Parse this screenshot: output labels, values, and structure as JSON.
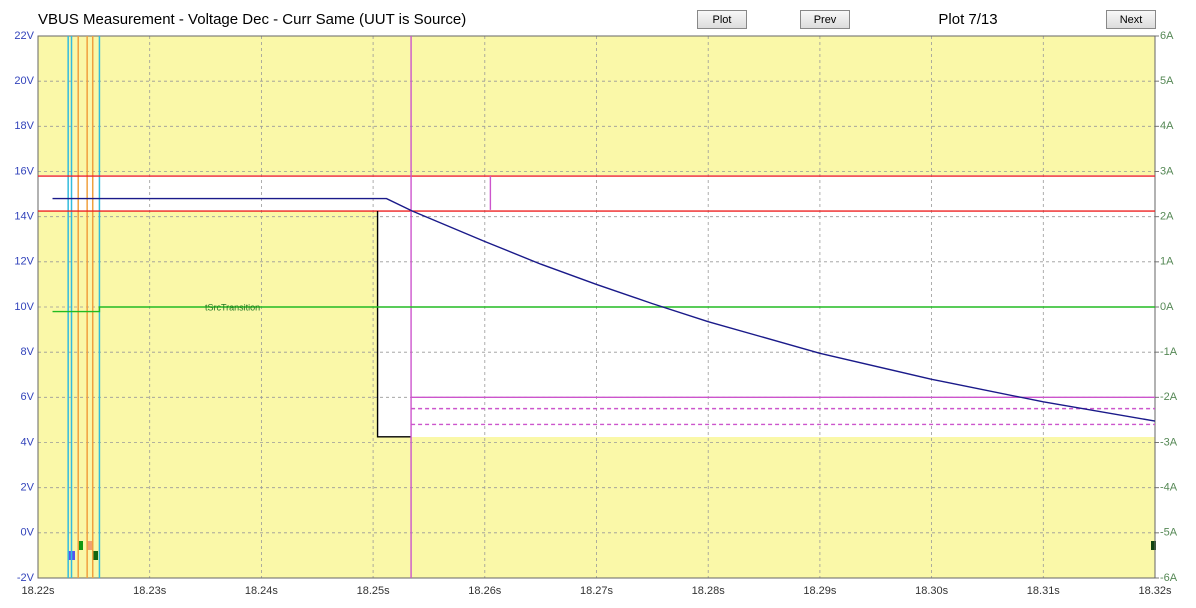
{
  "chart_data": {
    "type": "line",
    "title": "VBUS Measurement - Voltage Dec - Curr Same (UUT is Source)",
    "annotation": "tSrcTransition",
    "xlim": [
      18.22,
      18.32
    ],
    "xticks": [
      {
        "value": 18.22,
        "label": "18.22s"
      },
      {
        "value": 18.23,
        "label": "18.23s"
      },
      {
        "value": 18.24,
        "label": "18.24s"
      },
      {
        "value": 18.25,
        "label": "18.25s"
      },
      {
        "value": 18.26,
        "label": "18.26s"
      },
      {
        "value": 18.27,
        "label": "18.27s"
      },
      {
        "value": 18.28,
        "label": "18.28s"
      },
      {
        "value": 18.29,
        "label": "18.29s"
      },
      {
        "value": 18.3,
        "label": "18.30s"
      },
      {
        "value": 18.31,
        "label": "18.31s"
      },
      {
        "value": 18.32,
        "label": "18.32s"
      }
    ],
    "ylim": [
      -2,
      22
    ],
    "yticks": [
      {
        "value": -2,
        "label": "-2V"
      },
      {
        "value": 0,
        "label": "0V"
      },
      {
        "value": 2,
        "label": "2V"
      },
      {
        "value": 4,
        "label": "4V"
      },
      {
        "value": 6,
        "label": "6V"
      },
      {
        "value": 8,
        "label": "8V"
      },
      {
        "value": 10,
        "label": "10V"
      },
      {
        "value": 12,
        "label": "12V"
      },
      {
        "value": 14,
        "label": "14V"
      },
      {
        "value": 16,
        "label": "16V"
      },
      {
        "value": 18,
        "label": "18V"
      },
      {
        "value": 20,
        "label": "20V"
      },
      {
        "value": 22,
        "label": "22V"
      }
    ],
    "y2lim": [
      -6,
      6
    ],
    "y2ticks": [
      {
        "value": -6,
        "label": "-6A"
      },
      {
        "value": -5,
        "label": "-5A"
      },
      {
        "value": -4,
        "label": "-4A"
      },
      {
        "value": -3,
        "label": "-3A"
      },
      {
        "value": -2,
        "label": "-2A"
      },
      {
        "value": -1,
        "label": "-1A"
      },
      {
        "value": 0,
        "label": "0A"
      },
      {
        "value": 1,
        "label": "1A"
      },
      {
        "value": 2,
        "label": "2A"
      },
      {
        "value": 3,
        "label": "3A"
      },
      {
        "value": 4,
        "label": "4A"
      },
      {
        "value": 5,
        "label": "5A"
      },
      {
        "value": 6,
        "label": "6A"
      }
    ],
    "grid": true,
    "series": [
      {
        "color": "#ee2222",
        "x": [
          18.22,
          18.32
        ],
        "values": [
          15.8,
          15.8
        ]
      },
      {
        "color": "#ee2222",
        "x": [
          18.22,
          18.32
        ],
        "values": [
          14.25,
          14.25
        ]
      },
      {
        "color": "#000000",
        "x": [
          18.2504,
          18.2504,
          18.2534
        ],
        "values": [
          14.25,
          4.25,
          4.25
        ]
      },
      {
        "color": "#cc55cc",
        "x": [
          18.2534,
          18.32
        ],
        "values": [
          6,
          6
        ]
      },
      {
        "color": "#cc55cc",
        "dash": true,
        "x": [
          18.2534,
          18.32
        ],
        "values": [
          5.5,
          5.5
        ]
      },
      {
        "color": "#cc55cc",
        "dash": true,
        "x": [
          18.2534,
          18.32
        ],
        "values": [
          4.8,
          4.8
        ]
      },
      {
        "color": "#cc55cc",
        "x": [
          18.2534,
          18.2534
        ],
        "values": [
          -2,
          22
        ]
      },
      {
        "color": "#cc55cc",
        "x": [
          18.2605,
          18.2605
        ],
        "values": [
          15.8,
          14.3
        ]
      },
      {
        "color": "#22bb22",
        "axis": "y2",
        "x": [
          18.2213,
          18.2255,
          18.2255,
          18.32
        ],
        "values": [
          -0.1,
          -0.1,
          0,
          0
        ]
      },
      {
        "color": "#1a1a8a",
        "x": [
          18.2213,
          18.2512,
          18.2535,
          18.26,
          18.265,
          18.27,
          18.275,
          18.28,
          18.29,
          18.3,
          18.31,
          18.32
        ],
        "values": [
          14.8,
          14.8,
          14.25,
          12.9,
          11.9,
          11.0,
          10.15,
          9.35,
          7.95,
          6.8,
          5.8,
          4.95
        ]
      }
    ],
    "cursors": [
      {
        "x": 18.2227,
        "color": "#33bbdd"
      },
      {
        "x": 18.223,
        "color": "#33bbdd"
      },
      {
        "x": 18.2236,
        "color": "#f0a040"
      },
      {
        "x": 18.2244,
        "color": "#f0a040"
      },
      {
        "x": 18.2249,
        "color": "#f0a040"
      },
      {
        "x": 18.2255,
        "color": "#33bbdd"
      }
    ]
  },
  "buttons": [
    "Plot",
    "Prev",
    "Next"
  ],
  "plot_counter": "Plot 7/13"
}
